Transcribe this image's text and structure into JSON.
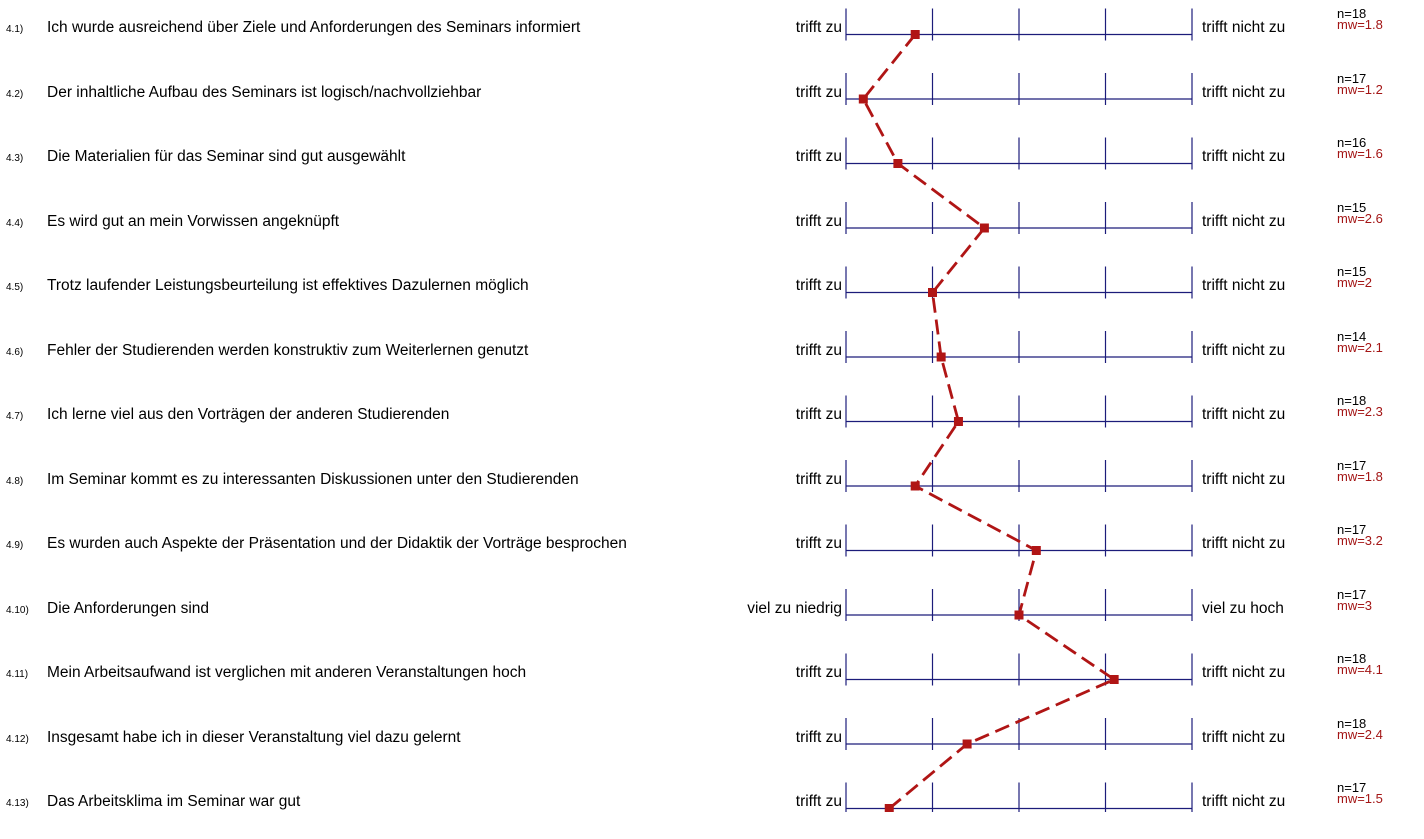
{
  "colors": {
    "grid": "#1c1c7a",
    "profile": "#b01515",
    "mean_text": "#a31515"
  },
  "chart_data": {
    "type": "line",
    "scale": [
      1,
      5
    ],
    "items": [
      {
        "num": "4.1)",
        "text": "Ich wurde ausreichend über Ziele und Anforderungen des Seminars informiert",
        "left": "trifft zu",
        "right": "trifft nicht zu",
        "n": "n=18",
        "mw_label": "mw=1.8",
        "mw": 1.8
      },
      {
        "num": "4.2)",
        "text": "Der inhaltliche Aufbau des Seminars ist logisch/nachvollziehbar",
        "left": "trifft zu",
        "right": "trifft nicht zu",
        "n": "n=17",
        "mw_label": "mw=1.2",
        "mw": 1.2
      },
      {
        "num": "4.3)",
        "text": "Die Materialien für das Seminar sind gut ausgewählt",
        "left": "trifft zu",
        "right": "trifft nicht zu",
        "n": "n=16",
        "mw_label": "mw=1.6",
        "mw": 1.6
      },
      {
        "num": "4.4)",
        "text": "Es wird gut an mein Vorwissen angeknüpft",
        "left": "trifft zu",
        "right": "trifft nicht zu",
        "n": "n=15",
        "mw_label": "mw=2.6",
        "mw": 2.6
      },
      {
        "num": "4.5)",
        "text": "Trotz laufender Leistungsbeurteilung ist effektives Dazulernen möglich",
        "left": "trifft zu",
        "right": "trifft nicht zu",
        "n": "n=15",
        "mw_label": "mw=2",
        "mw": 2
      },
      {
        "num": "4.6)",
        "text": "Fehler der Studierenden werden konstruktiv zum Weiterlernen genutzt",
        "left": "trifft zu",
        "right": "trifft nicht zu",
        "n": "n=14",
        "mw_label": "mw=2.1",
        "mw": 2.1
      },
      {
        "num": "4.7)",
        "text": "Ich lerne viel aus den Vorträgen der anderen Studierenden",
        "left": "trifft zu",
        "right": "trifft nicht zu",
        "n": "n=18",
        "mw_label": "mw=2.3",
        "mw": 2.3
      },
      {
        "num": "4.8)",
        "text": "Im Seminar kommt es zu interessanten Diskussionen unter den Studierenden",
        "left": "trifft zu",
        "right": "trifft nicht zu",
        "n": "n=17",
        "mw_label": "mw=1.8",
        "mw": 1.8
      },
      {
        "num": "4.9)",
        "text": "Es wurden auch Aspekte der Präsentation und der Didaktik der Vorträge besprochen",
        "left": "trifft zu",
        "right": "trifft nicht zu",
        "n": "n=17",
        "mw_label": "mw=3.2",
        "mw": 3.2
      },
      {
        "num": "4.10)",
        "text": "Die Anforderungen sind",
        "left": "viel zu niedrig",
        "right": "viel zu hoch",
        "n": "n=17",
        "mw_label": "mw=3",
        "mw": 3
      },
      {
        "num": "4.11)",
        "text": "Mein Arbeitsaufwand ist verglichen mit anderen Veranstaltungen hoch",
        "left": "trifft zu",
        "right": "trifft nicht zu",
        "n": "n=18",
        "mw_label": "mw=4.1",
        "mw": 4.1
      },
      {
        "num": "4.12)",
        "text": "Insgesamt habe ich in dieser Veranstaltung viel dazu gelernt",
        "left": "trifft zu",
        "right": "trifft nicht zu",
        "n": "n=18",
        "mw_label": "mw=2.4",
        "mw": 2.4
      },
      {
        "num": "4.13)",
        "text": "Das Arbeitsklima im Seminar war gut",
        "left": "trifft zu",
        "right": "trifft nicht zu",
        "n": "n=17",
        "mw_label": "mw=1.5",
        "mw": 1.5
      }
    ]
  }
}
